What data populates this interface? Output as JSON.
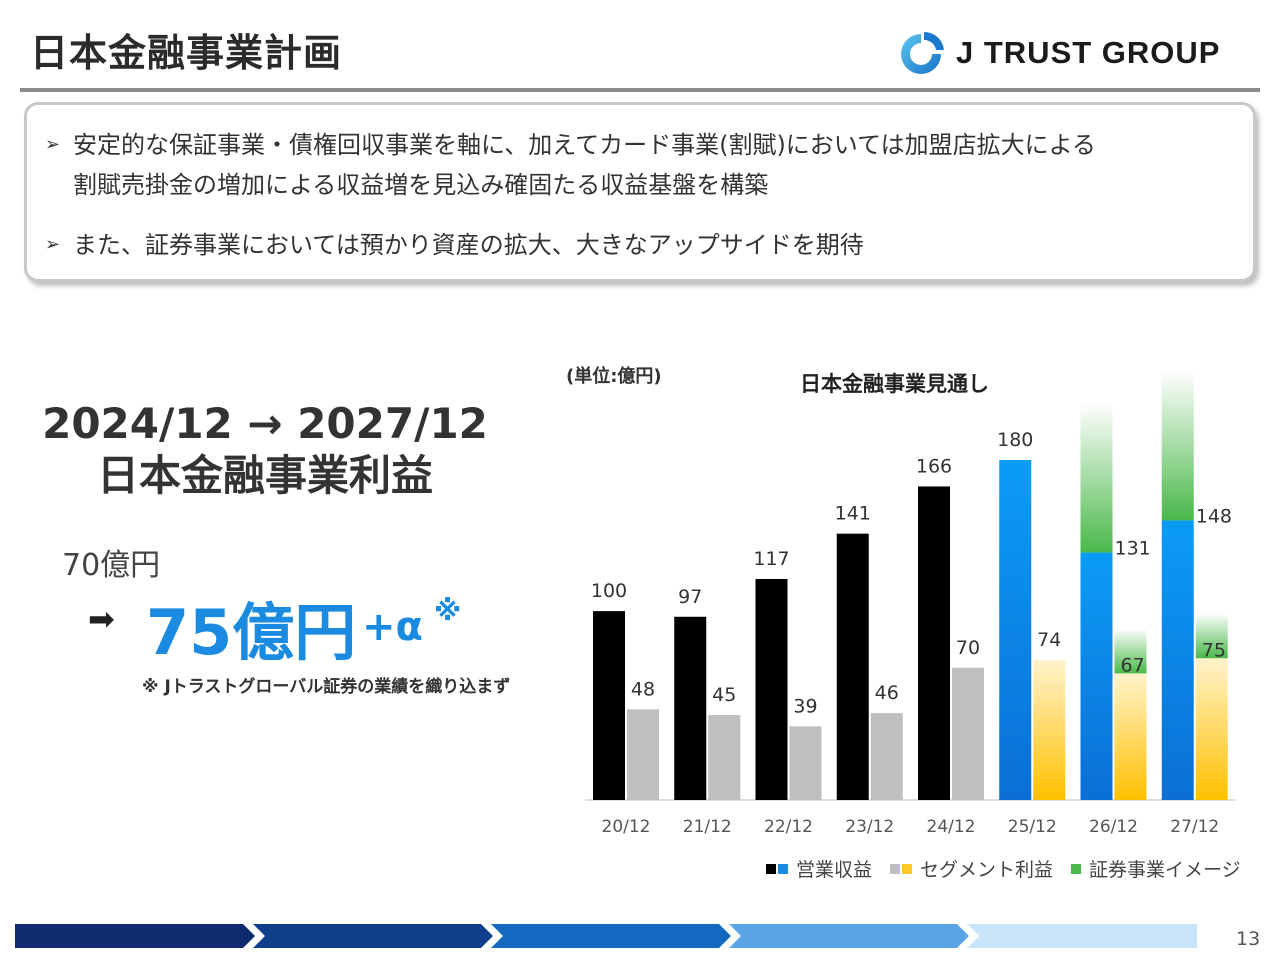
{
  "header": {
    "title": "日本金融事業計画",
    "logo_text": "J TRUST GROUP"
  },
  "summary_box": {
    "bullets": [
      {
        "line1": "安定的な保証事業・債権回収事業を軸に、加えてカード事業(割賦)においては加盟店拡大による",
        "line2": "割賦売掛金の増加による収益増を見込み確固たる収益基盤を構築"
      },
      {
        "line1": "また、証券事業においては預かり資産の拡大、大きなアップサイドを期待"
      }
    ]
  },
  "profit_panel": {
    "period": "2024/12 → 2027/12",
    "subject": "日本金融事業利益",
    "old_value": "70億円",
    "new_value": "75億円",
    "new_suffix": "+α",
    "note_mark": "※",
    "note": "※ Jトラストグローバル証券の業績を織り込まず"
  },
  "chart_data": {
    "type": "bar",
    "title": "日本金融事業見通し",
    "unit_label": "(単位:億円)",
    "categories": [
      "20/12",
      "21/12",
      "22/12",
      "23/12",
      "24/12",
      "25/12",
      "26/12",
      "27/12"
    ],
    "series": [
      {
        "name": "営業収益",
        "values": [
          100,
          97,
          117,
          141,
          166,
          180,
          131,
          148
        ],
        "colors": [
          "#000000",
          "#1a8be0"
        ]
      },
      {
        "name": "セグメント利益",
        "values": [
          48,
          45,
          39,
          46,
          70,
          74,
          67,
          75
        ],
        "colors": [
          "#bfbfbf",
          "#ffc824"
        ]
      },
      {
        "name": "証券事業イメージ",
        "colors": [
          "#4ab84a"
        ]
      }
    ],
    "forecast_start_index": 5,
    "securities_image_on": [
      "26/12",
      "27/12"
    ],
    "ylim": [
      0,
      250
    ],
    "grid": false,
    "legend_position": "bottom-right"
  },
  "footer": {
    "page_number": "13",
    "bar_colors": [
      "#102a6e",
      "#123f8c",
      "#1468c0",
      "#5aa4e8",
      "#c8e4fa"
    ]
  }
}
